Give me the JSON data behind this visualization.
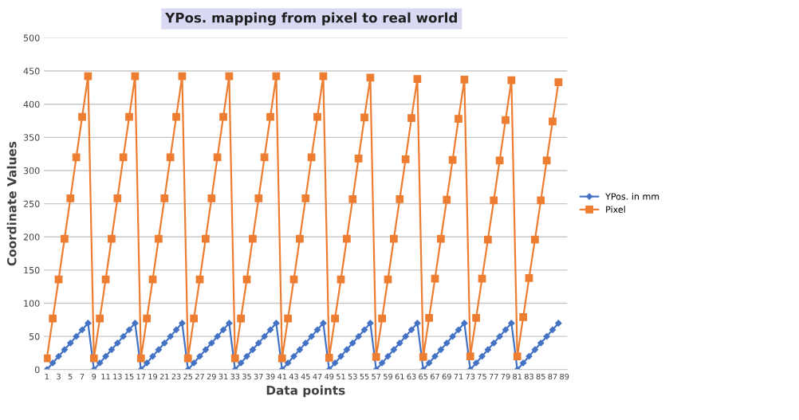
{
  "chart_data": {
    "type": "line",
    "title": "YPos. mapping from pixel to real world",
    "xlabel": "Data points",
    "ylabel": "Coordinate Values",
    "categories": [
      "1",
      null,
      "3",
      null,
      "5",
      null,
      "7",
      null,
      "9",
      null,
      "11",
      null,
      "13",
      null,
      "15",
      null,
      "17",
      null,
      "19",
      null,
      "21",
      null,
      "23",
      null,
      "25",
      null,
      "27",
      null,
      "29",
      null,
      "31",
      null,
      "33",
      null,
      "35",
      null,
      "37",
      null,
      "39",
      null,
      "41",
      null,
      "43",
      null,
      "45",
      null,
      "47",
      null,
      "49",
      null,
      "51",
      null,
      "53",
      null,
      "55",
      null,
      "57",
      null,
      "59",
      null,
      "61",
      null,
      "63",
      null,
      "65",
      null,
      "67",
      null,
      "69",
      null,
      "71",
      null,
      "73",
      null,
      "75",
      null,
      "77",
      null,
      "79",
      null,
      "81",
      null,
      "83",
      null,
      "85",
      null,
      "87",
      null,
      "89"
    ],
    "series": [
      {
        "name": "YPos. in mm",
        "color": "#4472c4",
        "marker": "diamond",
        "values": [
          0,
          10,
          20,
          30,
          40,
          50,
          60,
          70,
          0,
          10,
          20,
          30,
          40,
          50,
          60,
          70,
          0,
          10,
          20,
          30,
          40,
          50,
          60,
          70,
          0,
          10,
          20,
          30,
          40,
          50,
          60,
          70,
          0,
          10,
          20,
          30,
          40,
          50,
          60,
          70,
          0,
          10,
          20,
          30,
          40,
          50,
          60,
          70,
          0,
          10,
          20,
          30,
          40,
          50,
          60,
          70,
          0,
          10,
          20,
          30,
          40,
          50,
          60,
          70,
          0,
          10,
          20,
          30,
          40,
          50,
          60,
          70,
          0,
          10,
          20,
          30,
          40,
          50,
          60,
          70,
          0,
          10,
          20,
          30,
          40,
          50,
          60,
          70,
          null
        ]
      },
      {
        "name": "Pixel",
        "color": "#ed7d31",
        "marker": "square",
        "values": [
          17,
          77,
          136,
          197,
          258,
          320,
          381,
          442,
          17,
          77,
          136,
          197,
          258,
          320,
          381,
          442,
          17,
          77,
          136,
          197,
          258,
          320,
          381,
          442,
          17,
          77,
          136,
          197,
          258,
          320,
          381,
          442,
          17,
          77,
          136,
          197,
          258,
          320,
          381,
          442,
          17,
          77,
          136,
          197,
          258,
          320,
          381,
          442,
          18,
          77,
          136,
          197,
          257,
          318,
          380,
          440,
          19,
          77,
          136,
          197,
          257,
          317,
          379,
          438,
          19,
          78,
          137,
          197,
          256,
          316,
          378,
          437,
          20,
          78,
          137,
          196,
          255,
          315,
          376,
          436,
          20,
          79,
          138,
          196,
          255,
          315,
          374,
          433,
          null
        ]
      }
    ],
    "ylim": [
      0,
      500
    ],
    "yticks": [
      0,
      50,
      100,
      150,
      200,
      250,
      300,
      350,
      400,
      450,
      500
    ],
    "grid": "y",
    "legend": "right"
  }
}
